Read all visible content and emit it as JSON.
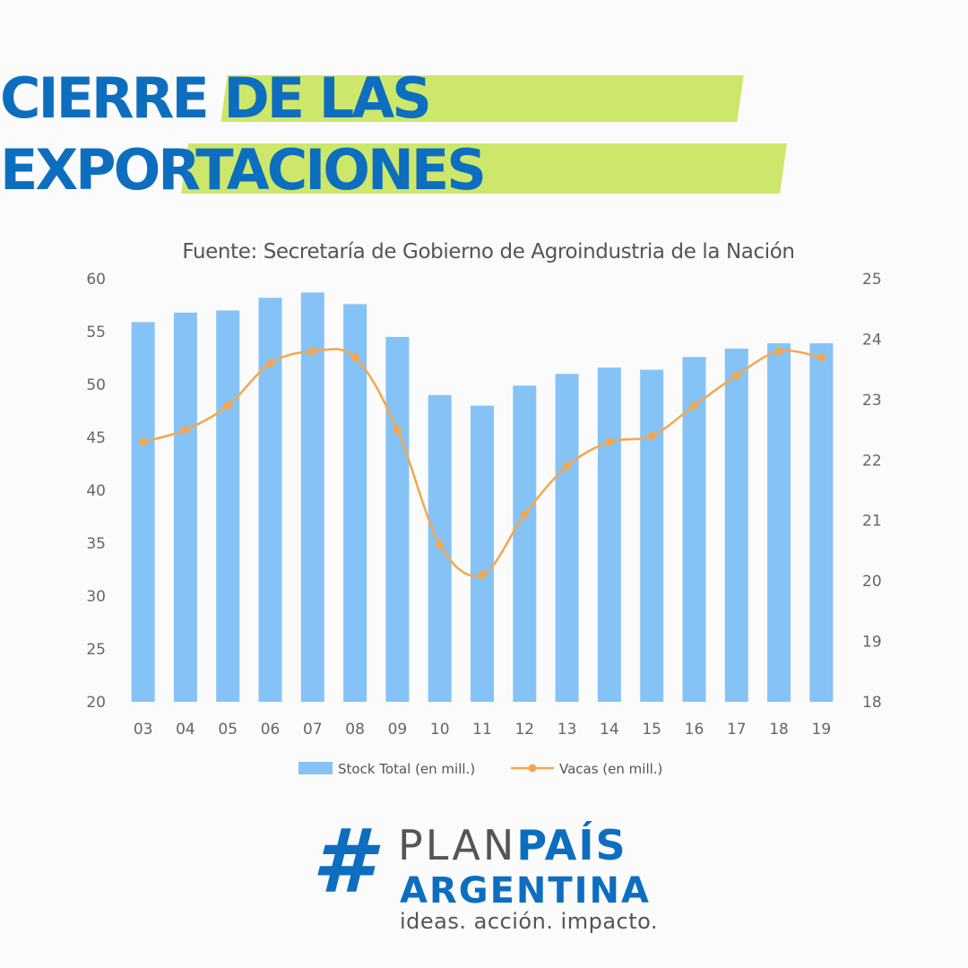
{
  "title": {
    "line1": "CIERRE DE LAS",
    "line2": "EXPORTACIONES"
  },
  "colors": {
    "title": "#0d6ebf",
    "highlight": "#cde76a",
    "bar": "#85c3f7",
    "line": "#f4a750"
  },
  "chart_data": {
    "type": "bar",
    "title": "Fuente: Secretaría de Gobierno de Agroindustria de la Nación",
    "categories": [
      "03",
      "04",
      "05",
      "06",
      "07",
      "08",
      "09",
      "10",
      "11",
      "12",
      "13",
      "14",
      "15",
      "16",
      "17",
      "18",
      "19"
    ],
    "series": [
      {
        "name": "Stock Total (en mill.)",
        "type": "bar",
        "axis": "left",
        "values": [
          55.9,
          56.8,
          57.0,
          58.2,
          58.7,
          57.6,
          54.5,
          49.0,
          48.0,
          49.9,
          51.0,
          51.6,
          51.4,
          52.6,
          53.4,
          53.9,
          53.9
        ]
      },
      {
        "name": "Vacas (en mill.)",
        "type": "line",
        "axis": "right",
        "values": [
          22.3,
          22.5,
          22.9,
          23.6,
          23.8,
          23.7,
          22.5,
          20.6,
          20.1,
          21.1,
          21.9,
          22.3,
          22.4,
          22.9,
          23.4,
          23.8,
          23.7
        ]
      }
    ],
    "ylim_left": [
      20,
      60
    ],
    "yticks_left": [
      "20",
      "25",
      "30",
      "35",
      "40",
      "45",
      "50",
      "55",
      "60"
    ],
    "ylim_right": [
      18,
      25
    ],
    "yticks_right": [
      "18",
      "19",
      "20",
      "21",
      "22",
      "23",
      "24",
      "25"
    ],
    "legend": [
      "Stock Total (en mill.)",
      "Vacas (en mill.)"
    ],
    "legend_position": "bottom",
    "grid": false
  },
  "logo": {
    "hash": "#",
    "plan": "PLAN",
    "pais": "PAÍS",
    "argentina": "ARGENTINA",
    "tagline": "ideas. acción. impacto."
  }
}
